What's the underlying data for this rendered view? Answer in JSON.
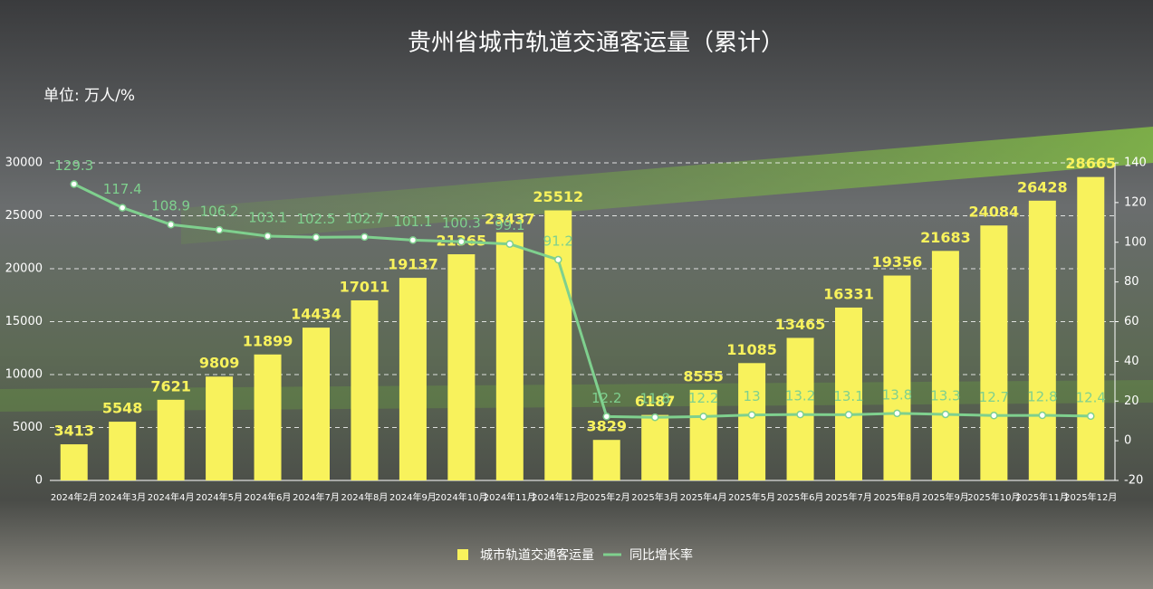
{
  "chart_data": {
    "type": "bar-line",
    "title": "贵州省城市轨道交通客运量（累计）",
    "unit_label": "单位: 万人/%",
    "categories": [
      "2024年2月",
      "2024年3月",
      "2024年4月",
      "2024年5月",
      "2024年6月",
      "2024年7月",
      "2024年8月",
      "2024年9月",
      "2024年10月",
      "2024年11月",
      "2024年12月",
      "2025年2月",
      "2025年3月",
      "2025年4月",
      "2025年5月",
      "2025年6月",
      "2025年7月",
      "2025年8月",
      "2025年9月",
      "2025年10月",
      "2025年11月",
      "2025年12月"
    ],
    "series": [
      {
        "name": "城市轨道交通客运量",
        "type": "bar",
        "color": "#f8f25c",
        "values": [
          3413,
          5548,
          7621,
          9809,
          11899,
          14434,
          17011,
          19137,
          21365,
          23437,
          25512,
          3829,
          6187,
          8555,
          11085,
          13465,
          16331,
          19356,
          21683,
          24084,
          26428,
          28665
        ]
      },
      {
        "name": "同比增长率",
        "type": "line",
        "axis": "y2",
        "color": "#7fd08e",
        "values": [
          129.3,
          117.4,
          108.9,
          106.2,
          103.1,
          102.5,
          102.7,
          101.1,
          100.3,
          99.1,
          91.2,
          12.2,
          11.8,
          12.2,
          13,
          13.2,
          13.1,
          13.8,
          13.3,
          12.7,
          12.8,
          12.4
        ]
      }
    ],
    "ylim": [
      0,
      30000
    ],
    "yticks": [
      0,
      5000,
      10000,
      15000,
      20000,
      25000,
      30000
    ],
    "y2lim": [
      -20,
      140
    ],
    "y2ticks": [
      -20,
      0,
      20,
      40,
      60,
      80,
      100,
      120,
      140
    ],
    "grid": true,
    "legend": "bottom"
  }
}
